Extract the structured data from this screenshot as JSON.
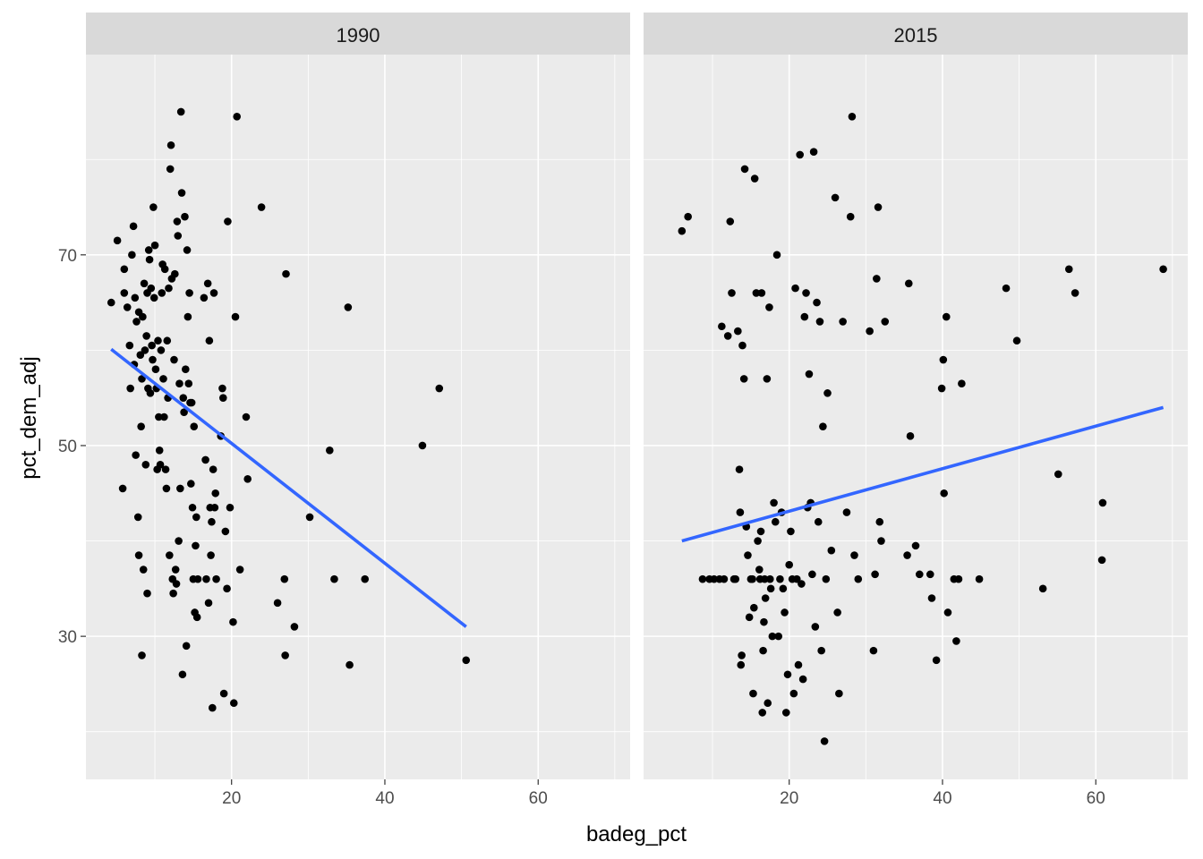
{
  "chart_data": {
    "type": "scatter",
    "xlabel": "badeg_pct",
    "ylabel": "pct_dem_adj",
    "xlim": [
      1,
      72
    ],
    "ylim": [
      15,
      91
    ],
    "x_ticks": [
      20,
      40,
      60
    ],
    "y_ticks": [
      30,
      50,
      70
    ],
    "x_minor": [
      10,
      30,
      50,
      70
    ],
    "y_minor": [
      20,
      40,
      60,
      80
    ],
    "grid": true,
    "point_color": "#000000",
    "line_color": "#3366ff",
    "panel_bg": "#ebebeb",
    "strip_bg": "#d9d9d9",
    "panels": [
      {
        "label": "1990",
        "trend": {
          "x": [
            4.3,
            50.6
          ],
          "y": [
            60.1,
            31.0
          ]
        },
        "points": [
          [
            4.3,
            65.0
          ],
          [
            5.1,
            71.5
          ],
          [
            5.8,
            45.5
          ],
          [
            6.0,
            68.5
          ],
          [
            6.0,
            66.0
          ],
          [
            6.4,
            64.5
          ],
          [
            6.7,
            60.5
          ],
          [
            6.8,
            56.0
          ],
          [
            7.0,
            70.0
          ],
          [
            7.2,
            73.0
          ],
          [
            7.3,
            58.5
          ],
          [
            7.4,
            65.5
          ],
          [
            7.5,
            49.0
          ],
          [
            7.6,
            63.0
          ],
          [
            7.8,
            42.5
          ],
          [
            7.9,
            64.0
          ],
          [
            7.9,
            38.5
          ],
          [
            8.1,
            59.5
          ],
          [
            8.2,
            52.0
          ],
          [
            8.3,
            57.0
          ],
          [
            8.3,
            28.0
          ],
          [
            8.4,
            63.5
          ],
          [
            8.5,
            37.0
          ],
          [
            8.6,
            67.0
          ],
          [
            8.7,
            60.0
          ],
          [
            8.8,
            48.0
          ],
          [
            8.9,
            61.5
          ],
          [
            9.0,
            66.0
          ],
          [
            9.0,
            34.5
          ],
          [
            9.1,
            56.0
          ],
          [
            9.2,
            70.5
          ],
          [
            9.3,
            69.5
          ],
          [
            9.4,
            55.5
          ],
          [
            9.5,
            66.5
          ],
          [
            9.6,
            60.5
          ],
          [
            9.7,
            59.0
          ],
          [
            9.8,
            75.0
          ],
          [
            9.9,
            65.5
          ],
          [
            10.0,
            71.0
          ],
          [
            10.1,
            58.0
          ],
          [
            10.2,
            56.0
          ],
          [
            10.3,
            47.5
          ],
          [
            10.4,
            61.0
          ],
          [
            10.5,
            53.0
          ],
          [
            10.6,
            49.5
          ],
          [
            10.7,
            48.0
          ],
          [
            10.8,
            60.0
          ],
          [
            10.9,
            66.0
          ],
          [
            11.0,
            69.0
          ],
          [
            11.1,
            57.0
          ],
          [
            11.2,
            53.0
          ],
          [
            11.3,
            68.5
          ],
          [
            11.4,
            47.5
          ],
          [
            11.5,
            45.5
          ],
          [
            11.6,
            61.0
          ],
          [
            11.7,
            55.0
          ],
          [
            11.8,
            66.5
          ],
          [
            11.9,
            38.5
          ],
          [
            12.0,
            79.0
          ],
          [
            12.1,
            81.5
          ],
          [
            12.2,
            67.5
          ],
          [
            12.3,
            36.0
          ],
          [
            12.4,
            34.5
          ],
          [
            12.5,
            59.0
          ],
          [
            12.6,
            68.0
          ],
          [
            12.7,
            37.0
          ],
          [
            12.8,
            35.5
          ],
          [
            12.9,
            73.5
          ],
          [
            13.0,
            72.0
          ],
          [
            13.1,
            40.0
          ],
          [
            13.2,
            56.5
          ],
          [
            13.3,
            45.5
          ],
          [
            13.4,
            85.0
          ],
          [
            13.5,
            76.5
          ],
          [
            13.6,
            26.0
          ],
          [
            13.7,
            55.0
          ],
          [
            13.8,
            53.5
          ],
          [
            13.9,
            74.0
          ],
          [
            14.0,
            58.0
          ],
          [
            14.1,
            29.0
          ],
          [
            14.2,
            70.5
          ],
          [
            14.3,
            63.5
          ],
          [
            14.4,
            56.5
          ],
          [
            14.5,
            66.0
          ],
          [
            14.6,
            54.5
          ],
          [
            14.7,
            46.0
          ],
          [
            14.8,
            54.5
          ],
          [
            14.9,
            43.5
          ],
          [
            15.0,
            36.0
          ],
          [
            15.1,
            52.0
          ],
          [
            15.2,
            32.5
          ],
          [
            15.3,
            39.5
          ],
          [
            15.4,
            42.5
          ],
          [
            15.5,
            32.0
          ],
          [
            15.6,
            36.0
          ],
          [
            16.4,
            65.5
          ],
          [
            16.6,
            48.5
          ],
          [
            16.7,
            36.0
          ],
          [
            16.9,
            67.0
          ],
          [
            17.0,
            33.5
          ],
          [
            17.1,
            61.0
          ],
          [
            17.2,
            43.5
          ],
          [
            17.3,
            38.5
          ],
          [
            17.4,
            42.0
          ],
          [
            17.5,
            22.5
          ],
          [
            17.6,
            47.5
          ],
          [
            17.7,
            66.0
          ],
          [
            17.8,
            43.5
          ],
          [
            17.9,
            45.0
          ],
          [
            18.0,
            36.0
          ],
          [
            18.6,
            51.0
          ],
          [
            18.8,
            56.0
          ],
          [
            18.9,
            55.0
          ],
          [
            19.0,
            24.0
          ],
          [
            19.2,
            41.0
          ],
          [
            19.4,
            35.0
          ],
          [
            19.5,
            73.5
          ],
          [
            19.8,
            43.5
          ],
          [
            20.2,
            31.5
          ],
          [
            20.3,
            23.0
          ],
          [
            20.5,
            63.5
          ],
          [
            20.7,
            84.5
          ],
          [
            21.1,
            37.0
          ],
          [
            21.9,
            53.0
          ],
          [
            22.1,
            46.5
          ],
          [
            23.9,
            75.0
          ],
          [
            26.0,
            33.5
          ],
          [
            26.9,
            36.0
          ],
          [
            27.0,
            28.0
          ],
          [
            27.1,
            68.0
          ],
          [
            28.2,
            31.0
          ],
          [
            30.2,
            42.5
          ],
          [
            32.8,
            49.5
          ],
          [
            33.4,
            36.0
          ],
          [
            35.2,
            64.5
          ],
          [
            35.4,
            27.0
          ],
          [
            37.4,
            36.0
          ],
          [
            44.9,
            50.0
          ],
          [
            47.1,
            56.0
          ],
          [
            50.6,
            27.5
          ]
        ]
      },
      {
        "label": "2015",
        "trend": {
          "x": [
            6.0,
            68.8
          ],
          "y": [
            40.0,
            54.0
          ]
        },
        "points": [
          [
            6.0,
            72.5
          ],
          [
            6.8,
            74.0
          ],
          [
            8.7,
            36.0
          ],
          [
            9.6,
            36.0
          ],
          [
            10.2,
            36.0
          ],
          [
            10.9,
            36.0
          ],
          [
            11.2,
            62.5
          ],
          [
            11.5,
            36.0
          ],
          [
            12.0,
            61.5
          ],
          [
            12.3,
            73.5
          ],
          [
            12.5,
            66.0
          ],
          [
            12.8,
            36.0
          ],
          [
            13.0,
            36.0
          ],
          [
            13.3,
            62.0
          ],
          [
            13.5,
            47.5
          ],
          [
            13.6,
            43.0
          ],
          [
            13.7,
            27.0
          ],
          [
            13.8,
            28.0
          ],
          [
            13.9,
            60.5
          ],
          [
            14.1,
            57.0
          ],
          [
            14.2,
            79.0
          ],
          [
            14.4,
            41.5
          ],
          [
            14.6,
            38.5
          ],
          [
            14.8,
            32.0
          ],
          [
            15.0,
            36.0
          ],
          [
            15.2,
            36.0
          ],
          [
            15.3,
            24.0
          ],
          [
            15.4,
            33.0
          ],
          [
            15.5,
            78.0
          ],
          [
            15.7,
            66.0
          ],
          [
            15.9,
            40.0
          ],
          [
            16.1,
            37.0
          ],
          [
            16.2,
            36.0
          ],
          [
            16.3,
            41.0
          ],
          [
            16.4,
            66.0
          ],
          [
            16.5,
            22.0
          ],
          [
            16.6,
            28.5
          ],
          [
            16.7,
            31.5
          ],
          [
            16.8,
            36.0
          ],
          [
            16.9,
            34.0
          ],
          [
            17.1,
            57.0
          ],
          [
            17.2,
            23.0
          ],
          [
            17.4,
            64.5
          ],
          [
            17.5,
            36.0
          ],
          [
            17.6,
            35.0
          ],
          [
            17.8,
            30.0
          ],
          [
            18.0,
            44.0
          ],
          [
            18.2,
            42.0
          ],
          [
            18.4,
            70.0
          ],
          [
            18.6,
            30.0
          ],
          [
            18.8,
            36.0
          ],
          [
            19.0,
            43.0
          ],
          [
            19.2,
            35.0
          ],
          [
            19.4,
            32.5
          ],
          [
            19.6,
            22.0
          ],
          [
            19.8,
            26.0
          ],
          [
            20.0,
            37.5
          ],
          [
            20.2,
            41.0
          ],
          [
            20.4,
            36.0
          ],
          [
            20.6,
            24.0
          ],
          [
            20.8,
            66.5
          ],
          [
            21.0,
            36.0
          ],
          [
            21.2,
            27.0
          ],
          [
            21.4,
            80.5
          ],
          [
            21.6,
            35.5
          ],
          [
            21.8,
            25.5
          ],
          [
            22.0,
            63.5
          ],
          [
            22.2,
            66.0
          ],
          [
            22.4,
            43.5
          ],
          [
            22.6,
            57.5
          ],
          [
            22.8,
            44.0
          ],
          [
            23.0,
            36.5
          ],
          [
            23.2,
            80.8
          ],
          [
            23.4,
            31.0
          ],
          [
            23.6,
            65.0
          ],
          [
            23.8,
            42.0
          ],
          [
            24.0,
            63.0
          ],
          [
            24.2,
            28.5
          ],
          [
            24.4,
            52.0
          ],
          [
            24.6,
            19.0
          ],
          [
            24.8,
            36.0
          ],
          [
            25.0,
            55.5
          ],
          [
            25.5,
            39.0
          ],
          [
            26.0,
            76.0
          ],
          [
            26.3,
            32.5
          ],
          [
            26.5,
            24.0
          ],
          [
            27.0,
            63.0
          ],
          [
            27.5,
            43.0
          ],
          [
            28.0,
            74.0
          ],
          [
            28.2,
            84.5
          ],
          [
            28.5,
            38.5
          ],
          [
            29.0,
            36.0
          ],
          [
            30.5,
            62.0
          ],
          [
            31.0,
            28.5
          ],
          [
            31.2,
            36.5
          ],
          [
            31.4,
            67.5
          ],
          [
            31.6,
            75.0
          ],
          [
            31.8,
            42.0
          ],
          [
            32.0,
            40.0
          ],
          [
            32.5,
            63.0
          ],
          [
            35.4,
            38.5
          ],
          [
            35.6,
            67.0
          ],
          [
            35.8,
            51.0
          ],
          [
            36.5,
            39.5
          ],
          [
            37.0,
            36.5
          ],
          [
            38.4,
            36.5
          ],
          [
            38.6,
            34.0
          ],
          [
            39.2,
            27.5
          ],
          [
            39.9,
            56.0
          ],
          [
            40.1,
            59.0
          ],
          [
            40.2,
            45.0
          ],
          [
            40.5,
            63.5
          ],
          [
            40.7,
            32.5
          ],
          [
            41.5,
            36.0
          ],
          [
            41.8,
            29.5
          ],
          [
            42.1,
            36.0
          ],
          [
            42.5,
            56.5
          ],
          [
            44.8,
            36.0
          ],
          [
            48.3,
            66.5
          ],
          [
            49.7,
            61.0
          ],
          [
            53.1,
            35.0
          ],
          [
            55.1,
            47.0
          ],
          [
            56.5,
            68.5
          ],
          [
            57.3,
            66.0
          ],
          [
            60.8,
            38.0
          ],
          [
            60.9,
            44.0
          ],
          [
            68.8,
            68.5
          ]
        ]
      }
    ]
  }
}
